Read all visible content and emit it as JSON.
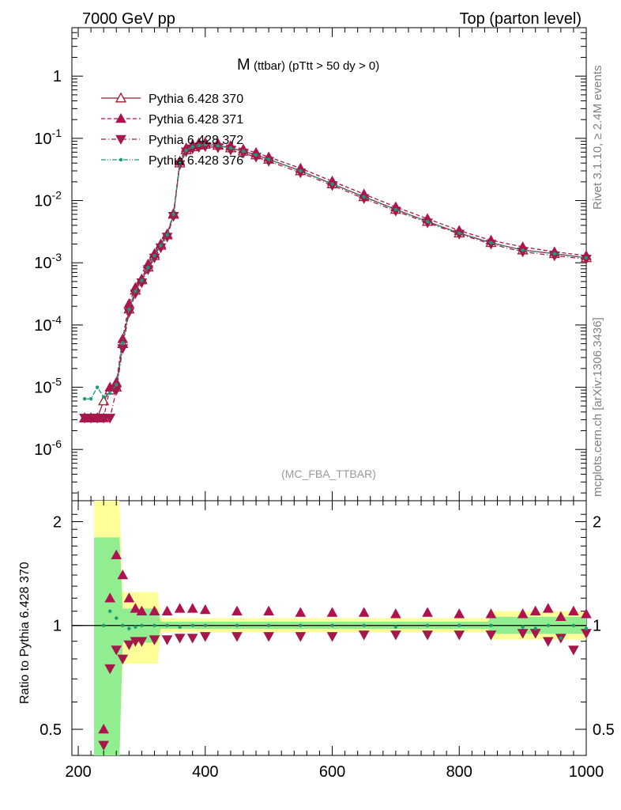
{
  "header": {
    "left": "7000 GeV pp",
    "right": "Top (parton level)"
  },
  "side": {
    "rivet": "Rivet 3.1.10, ≥ 2.4M events",
    "mcplots": "mcplots.cern.ch [arXiv:1306.3436]"
  },
  "plot_title": {
    "main": "M",
    "sub": "(ttbar) (pTtt > 50 dy > 0)"
  },
  "analysis_tag": "(MC_FBA_TTBAR)",
  "ratio_ylabel": "Ratio to Pythia 6.428 370",
  "colors": {
    "s370": "#9b1c2c",
    "s371": "#b0124f",
    "s372": "#a4184a",
    "s376": "#1a9a7a",
    "band_yellow": "#ffff99",
    "band_green": "#90ee90"
  },
  "chart_data": [
    {
      "type": "line",
      "title": "M (ttbar) (pTtt > 50 dy > 0)",
      "yscale": "log",
      "xlim": [
        190,
        1000
      ],
      "ylim": [
        1.5e-07,
        6
      ],
      "x_ticks": [
        200,
        400,
        600,
        800,
        1000
      ],
      "y_tick_labels": [
        "1",
        "10^-1",
        "10^-2",
        "10^-3",
        "10^-4",
        "10^-5",
        "10^-6"
      ],
      "legend_position": "top-left",
      "series": [
        {
          "name": "Pythia 6.428 370",
          "marker": "open-triangle-up",
          "line": "solid",
          "x": [
            210,
            220,
            230,
            240,
            250,
            260,
            270,
            280,
            290,
            300,
            310,
            320,
            330,
            340,
            350,
            360,
            370,
            380,
            390,
            400,
            420,
            440,
            460,
            480,
            500,
            550,
            600,
            650,
            700,
            750,
            800,
            850,
            900,
            950,
            1000
          ],
          "y": [
            3.2e-06,
            3.2e-06,
            3.2e-06,
            6e-06,
            9e-06,
            1e-05,
            5e-05,
            0.00018,
            0.00036,
            0.00053,
            0.00085,
            0.0013,
            0.0019,
            0.0028,
            0.006,
            0.04,
            0.065,
            0.073,
            0.078,
            0.08,
            0.077,
            0.07,
            0.062,
            0.054,
            0.046,
            0.03,
            0.0185,
            0.0115,
            0.0072,
            0.0046,
            0.003,
            0.0021,
            0.0016,
            0.0014,
            0.0012
          ]
        },
        {
          "name": "Pythia 6.428 371",
          "marker": "filled-triangle-up",
          "line": "dashed",
          "x": [
            210,
            220,
            230,
            240,
            250,
            260,
            270,
            280,
            290,
            300,
            310,
            320,
            330,
            340,
            350,
            360,
            370,
            380,
            390,
            400,
            420,
            440,
            460,
            480,
            500,
            550,
            600,
            650,
            700,
            750,
            800,
            850,
            900,
            950,
            1000
          ],
          "y": [
            3.2e-06,
            3.2e-06,
            3.2e-06,
            3.2e-06,
            1e-05,
            1.2e-05,
            6e-05,
            0.00022,
            0.0004,
            0.00055,
            0.00095,
            0.0014,
            0.002,
            0.0029,
            0.0062,
            0.043,
            0.07,
            0.079,
            0.084,
            0.086,
            0.083,
            0.076,
            0.067,
            0.059,
            0.05,
            0.033,
            0.0205,
            0.0127,
            0.0079,
            0.0051,
            0.0033,
            0.0023,
            0.0018,
            0.0015,
            0.0013
          ]
        },
        {
          "name": "Pythia 6.428 372",
          "marker": "filled-triangle-down",
          "line": "dash-dot",
          "x": [
            210,
            220,
            230,
            240,
            250,
            260,
            270,
            280,
            290,
            300,
            310,
            320,
            330,
            340,
            350,
            360,
            370,
            380,
            390,
            400,
            420,
            440,
            460,
            480,
            500,
            550,
            600,
            650,
            700,
            750,
            800,
            850,
            900,
            950,
            1000
          ],
          "y": [
            3.2e-06,
            3.2e-06,
            3.2e-06,
            3.2e-06,
            3.2e-06,
            9e-06,
            4.2e-05,
            0.00016,
            0.00032,
            0.00048,
            0.00078,
            0.0012,
            0.00175,
            0.0026,
            0.0056,
            0.038,
            0.061,
            0.068,
            0.072,
            0.074,
            0.071,
            0.065,
            0.058,
            0.05,
            0.043,
            0.028,
            0.0175,
            0.0108,
            0.0068,
            0.0044,
            0.0029,
            0.002,
            0.0015,
            0.0013,
            0.00115
          ]
        },
        {
          "name": "Pythia 6.428 376",
          "marker": "dot",
          "line": "dash-dot-dot",
          "x": [
            210,
            220,
            230,
            240,
            250,
            260,
            270,
            280,
            290,
            300,
            310,
            320,
            330,
            340,
            350,
            360,
            370,
            380,
            390,
            400,
            420,
            440,
            460,
            480,
            500,
            550,
            600,
            650,
            700,
            750,
            800,
            850,
            900,
            950,
            1000
          ],
          "y": [
            6.5e-06,
            6.5e-06,
            1e-05,
            7e-06,
            8e-06,
            1.1e-05,
            5.2e-05,
            0.00018,
            0.00035,
            0.00052,
            0.00084,
            0.0013,
            0.0019,
            0.0028,
            0.006,
            0.04,
            0.064,
            0.073,
            0.077,
            0.079,
            0.076,
            0.07,
            0.062,
            0.054,
            0.046,
            0.03,
            0.0185,
            0.0115,
            0.0072,
            0.0046,
            0.003,
            0.0021,
            0.0016,
            0.0014,
            0.0012
          ]
        }
      ]
    },
    {
      "type": "line",
      "ylabel": "Ratio to Pythia 6.428 370",
      "yscale": "log",
      "xlim": [
        190,
        1000
      ],
      "ylim": [
        0.42,
        2.3
      ],
      "x_ticks": [
        200,
        400,
        600,
        800,
        1000
      ],
      "y_ticks": [
        0.5,
        1,
        2
      ],
      "series": [
        {
          "name": "Pythia 6.428 371",
          "x": [
            240,
            250,
            260,
            270,
            280,
            290,
            300,
            320,
            340,
            360,
            380,
            400,
            450,
            500,
            550,
            600,
            650,
            700,
            750,
            800,
            850,
            900,
            920,
            940,
            960,
            980,
            1000
          ],
          "y": [
            0.5,
            1.2,
            1.6,
            1.4,
            1.2,
            1.12,
            1.1,
            1.1,
            1.1,
            1.12,
            1.12,
            1.11,
            1.1,
            1.1,
            1.09,
            1.09,
            1.09,
            1.08,
            1.09,
            1.08,
            1.08,
            1.08,
            1.1,
            1.12,
            1.06,
            1.1,
            1.08
          ]
        },
        {
          "name": "Pythia 6.428 372",
          "x": [
            240,
            250,
            260,
            270,
            280,
            290,
            300,
            320,
            340,
            360,
            380,
            400,
            450,
            500,
            550,
            600,
            650,
            700,
            750,
            800,
            850,
            900,
            920,
            940,
            960,
            980,
            1000
          ],
          "y": [
            0.45,
            0.75,
            0.85,
            0.8,
            0.88,
            0.9,
            0.9,
            0.91,
            0.91,
            0.92,
            0.92,
            0.93,
            0.93,
            0.93,
            0.93,
            0.93,
            0.94,
            0.94,
            0.94,
            0.94,
            0.94,
            0.95,
            0.95,
            0.9,
            0.92,
            0.85,
            0.95
          ]
        },
        {
          "name": "Pythia 6.428 376",
          "x": [
            240,
            250,
            260,
            270,
            280,
            290,
            300,
            320,
            340,
            360,
            380,
            400,
            450,
            500,
            550,
            600,
            650,
            700,
            750,
            800,
            850,
            900,
            920,
            940,
            960,
            980,
            1000
          ],
          "y": [
            1.0,
            1.1,
            1.05,
            1.0,
            0.98,
            0.99,
            1.0,
            1.0,
            1.0,
            0.99,
            1.0,
            1.0,
            1.0,
            1.0,
            1.0,
            1.0,
            1.0,
            0.99,
            1.0,
            1.0,
            1.0,
            0.99,
            0.98,
            1.0,
            0.92,
            1.0,
            0.98
          ]
        }
      ]
    }
  ]
}
